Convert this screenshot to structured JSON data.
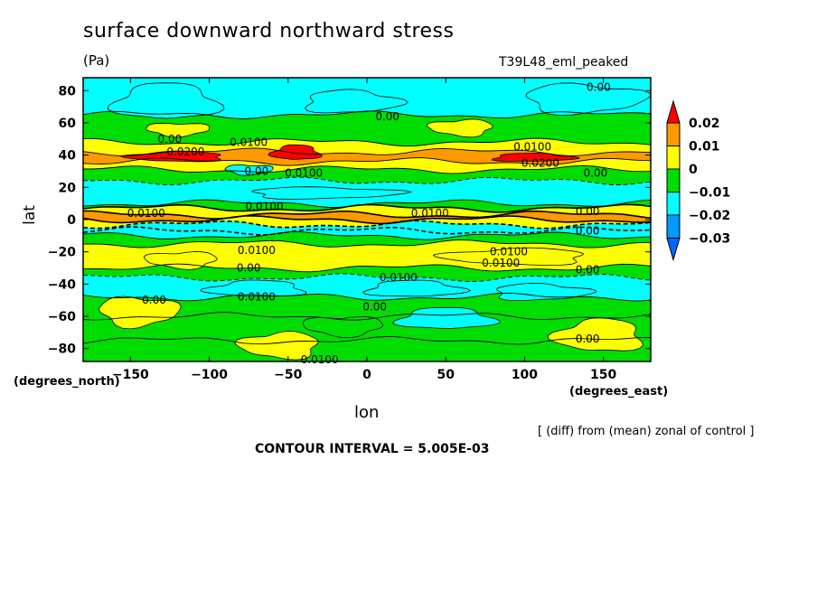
{
  "chart_data": {
    "type": "heatmap",
    "title": "surface downward northward stress",
    "units": "(Pa)",
    "run_name": "T39L48_eml_peaked",
    "xlabel": "lon",
    "ylabel": "lat",
    "x_units": "(degrees_east)",
    "y_units": "(degrees_north)",
    "note": "[ (diff) from (mean) zonal of control ]",
    "contour_interval": "CONTOUR INTERVAL = 5.005E-03",
    "xlim": [
      -180,
      180
    ],
    "ylim": [
      -88,
      88
    ],
    "x_ticks": [
      -150,
      -100,
      -50,
      0,
      50,
      100,
      150
    ],
    "x_tick_labels": [
      "−150",
      "−100",
      "−50",
      "0",
      "50",
      "100",
      "150"
    ],
    "y_ticks": [
      80,
      60,
      40,
      20,
      0,
      -20,
      -40,
      -60,
      -80
    ],
    "y_tick_labels": [
      "80",
      "60",
      "40",
      "20",
      "0",
      "−20",
      "−40",
      "−60",
      "−80"
    ],
    "colorbar": {
      "labels": [
        "0.02",
        "0.01",
        "0",
        "−0.01",
        "−0.02",
        "−0.03"
      ],
      "levels": [
        0.02,
        0.01,
        0,
        -0.01,
        -0.02,
        -0.03
      ],
      "colors": [
        "#ff0000",
        "#ff9900",
        "#ffff00",
        "#00dd00",
        "#00ffff",
        "#0099ff",
        "#0066ff"
      ]
    },
    "zonal_bands": [
      {
        "lat_top": 88,
        "lat_bottom": 65,
        "class": -1
      },
      {
        "lat_top": 65,
        "lat_bottom": 48,
        "class": 0
      },
      {
        "lat_top": 48,
        "lat_bottom": 42,
        "class": 1
      },
      {
        "lat_top": 42,
        "lat_bottom": 36,
        "class": 2
      },
      {
        "lat_top": 36,
        "lat_bottom": 31,
        "class": 1
      },
      {
        "lat_top": 31,
        "lat_bottom": 24,
        "class": 0
      },
      {
        "lat_top": 24,
        "lat_bottom": 10,
        "class": -2
      },
      {
        "lat_top": 10,
        "lat_bottom": 7,
        "class": 0
      },
      {
        "lat_top": 7,
        "lat_bottom": 3,
        "class": 1
      },
      {
        "lat_top": 3,
        "lat_bottom": 0,
        "class": 2
      },
      {
        "lat_top": 0,
        "lat_bottom": -3,
        "class": 1
      },
      {
        "lat_top": -3,
        "lat_bottom": -7,
        "class": -1
      },
      {
        "lat_top": -7,
        "lat_bottom": -10,
        "class": -2
      },
      {
        "lat_top": -10,
        "lat_bottom": -15,
        "class": 0
      },
      {
        "lat_top": -15,
        "lat_bottom": -30,
        "class": 1
      },
      {
        "lat_top": -30,
        "lat_bottom": -36,
        "class": 0
      },
      {
        "lat_top": -36,
        "lat_bottom": -48,
        "class": -1
      },
      {
        "lat_top": -48,
        "lat_bottom": -60,
        "class": 0
      },
      {
        "lat_top": -60,
        "lat_bottom": -75,
        "class": 0
      },
      {
        "lat_top": -75,
        "lat_bottom": -88,
        "class": 0
      }
    ],
    "patches": [
      {
        "lon": [
          -160,
          -95
        ],
        "lat": [
          84,
          62
        ],
        "class": -2
      },
      {
        "lon": [
          -40,
          20
        ],
        "lat": [
          80,
          66
        ],
        "class": -1
      },
      {
        "lon": [
          100,
          175
        ],
        "lat": [
          84,
          66
        ],
        "class": -1
      },
      {
        "lon": [
          -140,
          -100
        ],
        "lat": [
          60,
          52
        ],
        "class": 1
      },
      {
        "lon": [
          40,
          80
        ],
        "lat": [
          62,
          52
        ],
        "class": 1
      },
      {
        "lon": [
          -150,
          -90
        ],
        "lat": [
          42,
          36
        ],
        "class": 3
      },
      {
        "lon": [
          -60,
          -30
        ],
        "lat": [
          46,
          37
        ],
        "class": 3
      },
      {
        "lon": [
          80,
          130
        ],
        "lat": [
          41,
          36
        ],
        "class": 3
      },
      {
        "lon": [
          -75,
          20
        ],
        "lat": [
          20,
          13
        ],
        "class": -2
      },
      {
        "lon": [
          -90,
          -60
        ],
        "lat": [
          34,
          28
        ],
        "class": -1
      },
      {
        "lon": [
          -140,
          -95
        ],
        "lat": [
          -20,
          -30
        ],
        "class": 1
      },
      {
        "lon": [
          50,
          140
        ],
        "lat": [
          -18,
          -28
        ],
        "class": 1
      },
      {
        "lon": [
          -100,
          -40
        ],
        "lat": [
          -38,
          -48
        ],
        "class": -2
      },
      {
        "lon": [
          0,
          60
        ],
        "lat": [
          -38,
          -48
        ],
        "class": -1
      },
      {
        "lon": [
          80,
          140
        ],
        "lat": [
          -40,
          -50
        ],
        "class": -1
      },
      {
        "lon": [
          -170,
          -120
        ],
        "lat": [
          -48,
          -66
        ],
        "class": 1
      },
      {
        "lon": [
          -40,
          10
        ],
        "lat": [
          -60,
          -72
        ],
        "class": 0
      },
      {
        "lon": [
          -80,
          -30
        ],
        "lat": [
          -70,
          -86
        ],
        "class": 1
      },
      {
        "lon": [
          120,
          175
        ],
        "lat": [
          -62,
          -82
        ],
        "class": 1
      },
      {
        "lon": [
          20,
          80
        ],
        "lat": [
          -55,
          -68
        ],
        "class": -1
      }
    ],
    "contour_labels": [
      {
        "text": "0.00",
        "lon": 147,
        "lat": 82
      },
      {
        "text": "0.00",
        "lon": 13,
        "lat": 64
      },
      {
        "text": "0.00",
        "lon": -125,
        "lat": 50
      },
      {
        "text": "0.0200",
        "lon": -115,
        "lat": 42
      },
      {
        "text": "0.0100",
        "lon": -75,
        "lat": 48
      },
      {
        "text": "0.0100",
        "lon": 105,
        "lat": 45
      },
      {
        "text": "0.0200",
        "lon": 110,
        "lat": 35
      },
      {
        "text": "0.00",
        "lon": 145,
        "lat": 29
      },
      {
        "text": "0.00",
        "lon": -70,
        "lat": 30
      },
      {
        "text": "0.0100",
        "lon": -40,
        "lat": 29
      },
      {
        "text": "0.0100",
        "lon": -65,
        "lat": 8
      },
      {
        "text": "0.0100",
        "lon": -140,
        "lat": 4
      },
      {
        "text": "0.0100",
        "lon": 40,
        "lat": 4
      },
      {
        "text": "0.00",
        "lon": 140,
        "lat": 5
      },
      {
        "text": "0.00",
        "lon": 140,
        "lat": -7
      },
      {
        "text": "0.0100",
        "lon": -70,
        "lat": -19
      },
      {
        "text": "0.0100",
        "lon": 90,
        "lat": -20
      },
      {
        "text": "0.0100",
        "lon": 85,
        "lat": -27
      },
      {
        "text": "0.00",
        "lon": -75,
        "lat": -30
      },
      {
        "text": "0.0100",
        "lon": 20,
        "lat": -36
      },
      {
        "text": "0.00",
        "lon": 140,
        "lat": -31
      },
      {
        "text": "0.00",
        "lon": -135,
        "lat": -50
      },
      {
        "text": "0.0100",
        "lon": -70,
        "lat": -48
      },
      {
        "text": "0.00",
        "lon": 5,
        "lat": -54
      },
      {
        "text": "0.00",
        "lon": 140,
        "lat": -74
      },
      {
        "text": "0.0100",
        "lon": -30,
        "lat": -87
      }
    ]
  }
}
